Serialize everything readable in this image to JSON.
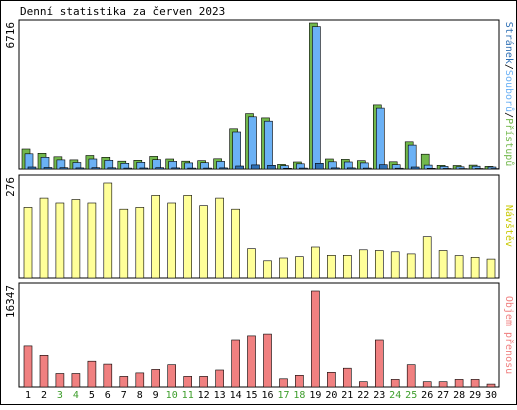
{
  "title": "Denní statistika za červen 2023",
  "colors": {
    "background": "#ffffff",
    "border": "#000000",
    "panel_bg": "#f2f2f2",
    "pristupy": "#72b84c",
    "soubory": "#6bb1f5",
    "stranky": "#2e6fb4",
    "navstevy": "#ffff99",
    "objem": "#f08080",
    "weekend_label": "#3c9d2a"
  },
  "chart_data": [
    {
      "type": "bar",
      "name": "hits",
      "ylabel": "6716",
      "ymax": 6716,
      "legend": [
        "Přístupů",
        "Souborů",
        "Stránek"
      ],
      "legend_separator": "/",
      "series": [
        {
          "name": "Přístupů",
          "values": [
            920,
            720,
            560,
            420,
            620,
            540,
            360,
            400,
            580,
            460,
            360,
            380,
            470,
            1850,
            2550,
            2350,
            210,
            320,
            6716,
            460,
            440,
            380,
            2950,
            330,
            1250,
            680,
            170,
            160,
            180,
            120
          ]
        },
        {
          "name": "Souborů",
          "values": [
            700,
            540,
            420,
            300,
            460,
            400,
            260,
            310,
            430,
            350,
            280,
            290,
            350,
            1700,
            2400,
            2200,
            150,
            240,
            6550,
            330,
            320,
            280,
            2800,
            200,
            1100,
            180,
            120,
            100,
            130,
            90
          ]
        },
        {
          "name": "Stránek",
          "values": [
            90,
            70,
            60,
            50,
            60,
            55,
            40,
            45,
            60,
            50,
            40,
            40,
            50,
            140,
            190,
            170,
            30,
            40,
            260,
            50,
            50,
            40,
            200,
            35,
            90,
            30,
            25,
            20,
            25,
            20
          ]
        }
      ]
    },
    {
      "type": "bar",
      "name": "visits",
      "ylabel": "276",
      "ymax": 276,
      "legend": [
        "Návštěv"
      ],
      "series": [
        {
          "name": "Návštěv",
          "values": [
            205,
            232,
            218,
            228,
            218,
            276,
            200,
            205,
            240,
            218,
            240,
            210,
            232,
            200,
            85,
            50,
            58,
            62,
            90,
            66,
            66,
            82,
            80,
            76,
            70,
            120,
            80,
            65,
            60,
            55
          ]
        }
      ]
    },
    {
      "type": "bar",
      "name": "traffic",
      "ylabel": "16347",
      "ymax": 16347,
      "legend": [
        "Objem přenosu"
      ],
      "series": [
        {
          "name": "Objem přenosu",
          "values": [
            7000,
            5400,
            2300,
            2300,
            4400,
            3900,
            1800,
            2400,
            3000,
            3800,
            1800,
            1800,
            2900,
            8000,
            8700,
            9000,
            1400,
            2000,
            16347,
            2500,
            3200,
            900,
            8000,
            1300,
            3800,
            900,
            900,
            1300,
            1300,
            500
          ]
        }
      ]
    }
  ],
  "x_categories": [
    "1",
    "2",
    "3",
    "4",
    "5",
    "6",
    "7",
    "8",
    "9",
    "10",
    "11",
    "12",
    "13",
    "14",
    "15",
    "16",
    "17",
    "18",
    "19",
    "20",
    "21",
    "22",
    "23",
    "24",
    "25",
    "26",
    "27",
    "28",
    "29",
    "30"
  ],
  "weekend_days": [
    "3",
    "4",
    "10",
    "11",
    "17",
    "18",
    "24",
    "25"
  ]
}
